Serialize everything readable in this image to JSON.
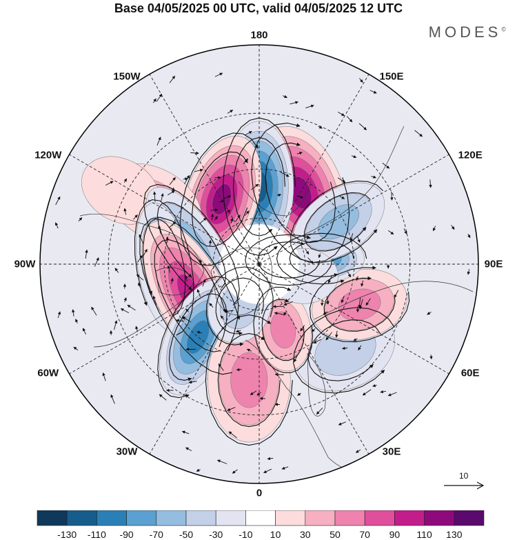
{
  "title": "Base 04/05/2025 00 UTC, valid 04/05/2025 12 UTC",
  "brand": {
    "name": "MODES",
    "mark": "©"
  },
  "longitude_labels": [
    {
      "text": "180",
      "angle_deg": 0
    },
    {
      "text": "150E",
      "angle_deg": 30
    },
    {
      "text": "120E",
      "angle_deg": 60
    },
    {
      "text": "90E",
      "angle_deg": 90
    },
    {
      "text": "60E",
      "angle_deg": 120
    },
    {
      "text": "30E",
      "angle_deg": 150
    },
    {
      "text": "0",
      "angle_deg": 180
    },
    {
      "text": "30W",
      "angle_deg": 210
    },
    {
      "text": "60W",
      "angle_deg": 240
    },
    {
      "text": "90W",
      "angle_deg": 270
    },
    {
      "text": "120W",
      "angle_deg": 300
    },
    {
      "text": "150W",
      "angle_deg": 330
    }
  ],
  "reference_vector": {
    "label": "10"
  },
  "colorbar": {
    "colors": [
      "#10385a",
      "#175d8c",
      "#2a7fb7",
      "#5aa0d0",
      "#94bde0",
      "#c3d0e8",
      "#e3e4f1",
      "#ffffff",
      "#fcdcdc",
      "#f6b0c2",
      "#ee83ae",
      "#df4f9c",
      "#c21d8b",
      "#8e0a7c",
      "#5a0a6c"
    ],
    "labels": [
      "-130",
      "-110",
      "-90",
      "-70",
      "-50",
      "-30",
      "-10",
      "10",
      "30",
      "50",
      "70",
      "90",
      "110",
      "130"
    ]
  },
  "anomaly_cells": [
    {
      "lon": -150,
      "lat": 55,
      "value": 120,
      "rx": 62,
      "ry": 100,
      "rot": -20
    },
    {
      "lon": 180,
      "lat": 57,
      "value": -125,
      "rx": 50,
      "ry": 95,
      "rot": 0
    },
    {
      "lon": 150,
      "lat": 58,
      "value": 110,
      "rx": 52,
      "ry": 95,
      "rot": 18
    },
    {
      "lon": 120,
      "lat": 40,
      "value": 30,
      "rx": 75,
      "ry": 50,
      "rot": 30
    },
    {
      "lon": 118,
      "lat": 28,
      "value": 20,
      "rx": 60,
      "ry": 45,
      "rot": 30
    },
    {
      "lon": 105,
      "lat": 60,
      "value": -50,
      "rx": 100,
      "ry": 40,
      "rot": 55
    },
    {
      "lon": 88,
      "lat": 50,
      "value": -70,
      "rx": 95,
      "ry": 38,
      "rot": 80
    },
    {
      "lon": 65,
      "lat": 58,
      "value": 95,
      "rx": 120,
      "ry": 50,
      "rot": 62
    },
    {
      "lon": 40,
      "lat": 50,
      "value": -90,
      "rx": 45,
      "ry": 90,
      "rot": 25
    },
    {
      "lon": 5,
      "lat": 42,
      "value": 60,
      "rx": 60,
      "ry": 90,
      "rot": 0
    },
    {
      "lon": -45,
      "lat": 40,
      "value": -45,
      "rx": 75,
      "ry": 55,
      "rot": -25
    },
    {
      "lon": -68,
      "lat": 45,
      "value": 65,
      "rx": 70,
      "ry": 50,
      "rot": -15
    },
    {
      "lon": -20,
      "lat": 60,
      "value": 50,
      "rx": 40,
      "ry": 60,
      "rot": -10
    },
    {
      "lon": -95,
      "lat": 63,
      "value": -95,
      "rx": 62,
      "ry": 35,
      "rot": 0
    },
    {
      "lon": -98,
      "lat": 77,
      "value": 100,
      "rx": 60,
      "ry": 35,
      "rot": 0
    },
    {
      "lon": -118,
      "lat": 52,
      "value": -55,
      "rx": 75,
      "ry": 45,
      "rot": -35
    },
    {
      "lon": -75,
      "lat": 70,
      "value": -20,
      "rx": 50,
      "ry": 40,
      "rot": 0
    },
    {
      "lon": 25,
      "lat": 70,
      "value": -40,
      "rx": 45,
      "ry": 55,
      "rot": 20
    }
  ]
}
